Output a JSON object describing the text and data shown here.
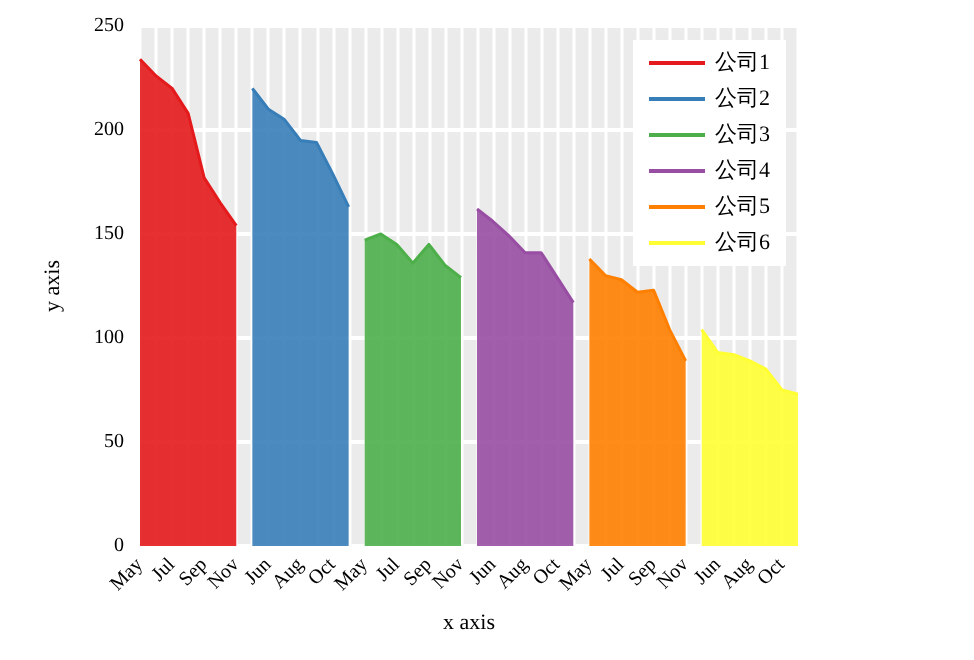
{
  "chart_data": {
    "type": "area",
    "xlabel": "x axis",
    "ylabel": "y axis",
    "categories": [
      "May",
      null,
      "Jul",
      null,
      "Sep",
      null,
      "Nov",
      null,
      "Jun",
      null,
      "Aug",
      null,
      "Oct",
      null,
      "May",
      null,
      "Jul",
      null,
      "Sep",
      null,
      "Nov",
      null,
      "Jun",
      null,
      "Aug",
      null,
      "Oct",
      null,
      "May",
      null,
      "Jul",
      null,
      "Sep",
      null,
      "Nov",
      null,
      "Jun",
      null,
      "Aug",
      null,
      "Oct",
      null
    ],
    "series": [
      {
        "name": "公司1",
        "color": "#e41a1c",
        "values": [
          234,
          226,
          220,
          208,
          177,
          165,
          154,
          null,
          null,
          null,
          null,
          null,
          null,
          null,
          null,
          null,
          null,
          null,
          null,
          null,
          null,
          null,
          null,
          null,
          null,
          null,
          null,
          null,
          null,
          null,
          null,
          null,
          null,
          null,
          null,
          null,
          null,
          null,
          null,
          null,
          null,
          null
        ]
      },
      {
        "name": "公司2",
        "color": "#377eb8",
        "values": [
          null,
          null,
          null,
          null,
          null,
          null,
          null,
          220,
          210,
          205,
          195,
          194,
          179,
          163,
          null,
          null,
          null,
          null,
          null,
          null,
          null,
          null,
          null,
          null,
          null,
          null,
          null,
          null,
          null,
          null,
          null,
          null,
          null,
          null,
          null,
          null,
          null,
          null,
          null,
          null,
          null,
          null
        ]
      },
      {
        "name": "公司3",
        "color": "#4daf4a",
        "values": [
          null,
          null,
          null,
          null,
          null,
          null,
          null,
          null,
          null,
          null,
          null,
          null,
          null,
          null,
          147,
          150,
          145,
          136,
          145,
          135,
          129,
          null,
          null,
          null,
          null,
          null,
          null,
          null,
          null,
          null,
          null,
          null,
          null,
          null,
          null,
          null,
          null,
          null,
          null,
          null,
          null,
          null
        ]
      },
      {
        "name": "公司4",
        "color": "#984ea3",
        "values": [
          null,
          null,
          null,
          null,
          null,
          null,
          null,
          null,
          null,
          null,
          null,
          null,
          null,
          null,
          null,
          null,
          null,
          null,
          null,
          null,
          null,
          162,
          156,
          149,
          141,
          141,
          129,
          117,
          null,
          null,
          null,
          null,
          null,
          null,
          null,
          null,
          null,
          null,
          null,
          null,
          null,
          null
        ]
      },
      {
        "name": "公司5",
        "color": "#ff7f00",
        "values": [
          null,
          null,
          null,
          null,
          null,
          null,
          null,
          null,
          null,
          null,
          null,
          null,
          null,
          null,
          null,
          null,
          null,
          null,
          null,
          null,
          null,
          null,
          null,
          null,
          null,
          null,
          null,
          null,
          138,
          130,
          128,
          122,
          123,
          104,
          89,
          null,
          null,
          null,
          null,
          null,
          null,
          null
        ]
      },
      {
        "name": "公司6",
        "color": "#ffff33",
        "values": [
          null,
          null,
          null,
          null,
          null,
          null,
          null,
          null,
          null,
          null,
          null,
          null,
          null,
          null,
          null,
          null,
          null,
          null,
          null,
          null,
          null,
          null,
          null,
          null,
          null,
          null,
          null,
          null,
          null,
          null,
          null,
          null,
          null,
          null,
          null,
          104,
          93,
          92,
          89,
          85,
          75,
          73
        ]
      }
    ],
    "ylim": [
      0,
      250
    ],
    "yticks": [
      0,
      50,
      100,
      150,
      200,
      250
    ],
    "grid": true,
    "legend": "top right"
  }
}
